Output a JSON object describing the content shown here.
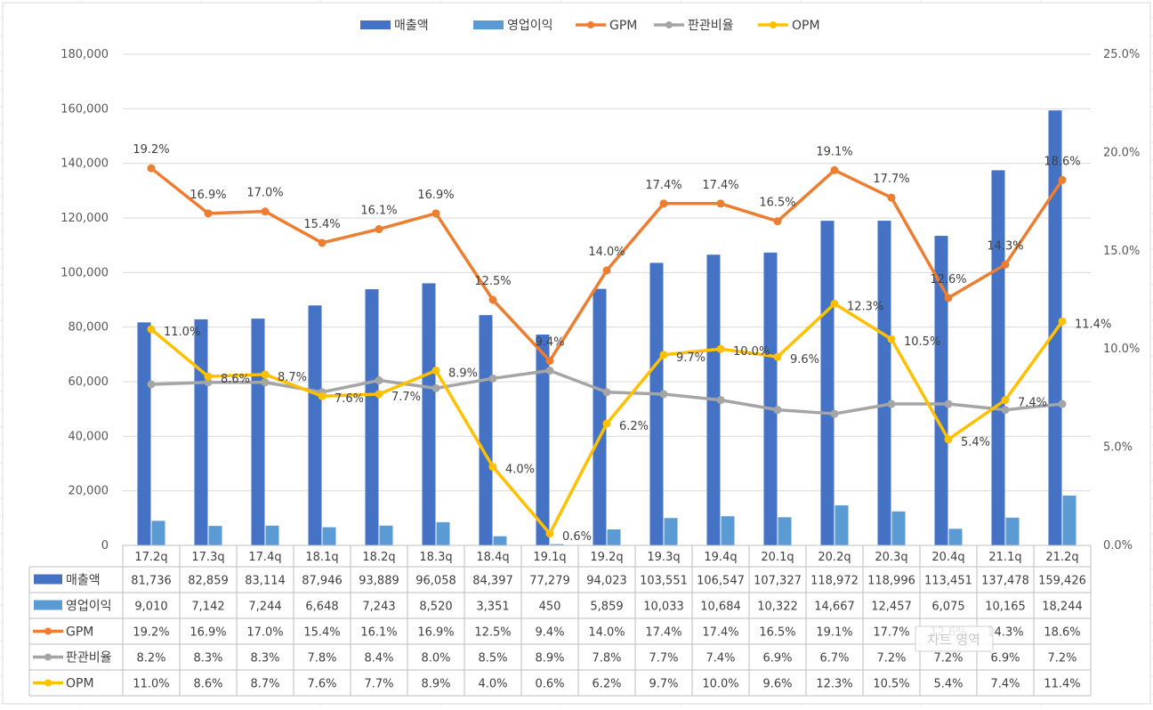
{
  "chart_data": {
    "type": "bar+line",
    "categories": [
      "17.2q",
      "17.3q",
      "17.4q",
      "18.1q",
      "18.2q",
      "18.3q",
      "18.4q",
      "19.1q",
      "19.2q",
      "19.3q",
      "19.4q",
      "20.1q",
      "20.2q",
      "20.3q",
      "20.4q",
      "21.1q",
      "21.2q"
    ],
    "bar_series": [
      {
        "name": "매출액",
        "color": "#4472C4",
        "axis": "left",
        "values": [
          81736,
          82859,
          83114,
          87946,
          93889,
          96058,
          84397,
          77279,
          94023,
          103551,
          106547,
          107327,
          118972,
          118996,
          113451,
          137478,
          159426
        ],
        "display": [
          "81,736",
          "82,859",
          "83,114",
          "87,946",
          "93,889",
          "96,058",
          "84,397",
          "77,279",
          "94,023",
          "103,551",
          "106,547",
          "107,327",
          "118,972",
          "118,996",
          "113,451",
          "137,478",
          "159,426"
        ]
      },
      {
        "name": "영업이익",
        "color": "#5B9BD5",
        "axis": "left",
        "values": [
          9010,
          7142,
          7244,
          6648,
          7243,
          8520,
          3351,
          450,
          5859,
          10033,
          10684,
          10322,
          14667,
          12457,
          6075,
          10165,
          18244
        ],
        "display": [
          "9,010",
          "7,142",
          "7,244",
          "6,648",
          "7,243",
          "8,520",
          "3,351",
          "450",
          "5,859",
          "10,033",
          "10,684",
          "10,322",
          "14,667",
          "12,457",
          "6,075",
          "10,165",
          "18,244"
        ]
      }
    ],
    "line_series": [
      {
        "name": "GPM",
        "color": "#ED7D31",
        "axis": "right",
        "show_labels": true,
        "values": [
          19.2,
          16.9,
          17.0,
          15.4,
          16.1,
          16.9,
          12.5,
          9.4,
          14.0,
          17.4,
          17.4,
          16.5,
          19.1,
          17.7,
          12.6,
          14.3,
          18.6
        ],
        "display": [
          "19.2%",
          "16.9%",
          "17.0%",
          "15.4%",
          "16.1%",
          "16.9%",
          "12.5%",
          "9.4%",
          "14.0%",
          "17.4%",
          "17.4%",
          "16.5%",
          "19.1%",
          "17.7%",
          "12.6%",
          "14.3%",
          "18.6%"
        ]
      },
      {
        "name": "판관비율",
        "color": "#A5A5A5",
        "axis": "right",
        "show_labels": false,
        "values": [
          8.2,
          8.3,
          8.3,
          7.8,
          8.4,
          8.0,
          8.5,
          8.9,
          7.8,
          7.7,
          7.4,
          6.9,
          6.7,
          7.2,
          7.2,
          6.9,
          7.2
        ],
        "display": [
          "8.2%",
          "8.3%",
          "8.3%",
          "7.8%",
          "8.4%",
          "8.0%",
          "8.5%",
          "8.9%",
          "7.8%",
          "7.7%",
          "7.4%",
          "6.9%",
          "6.7%",
          "7.2%",
          "7.2%",
          "6.9%",
          "7.2%"
        ]
      },
      {
        "name": "OPM",
        "color": "#FFC000",
        "axis": "right",
        "show_labels": true,
        "values": [
          11.0,
          8.6,
          8.7,
          7.6,
          7.7,
          8.9,
          4.0,
          0.6,
          6.2,
          9.7,
          10.0,
          9.6,
          12.3,
          10.5,
          5.4,
          7.4,
          11.4
        ],
        "display": [
          "11.0%",
          "8.6%",
          "8.7%",
          "7.6%",
          "7.7%",
          "8.9%",
          "4.0%",
          "0.6%",
          "6.2%",
          "9.7%",
          "10.0%",
          "9.6%",
          "12.3%",
          "10.5%",
          "5.4%",
          "7.4%",
          "11.4%"
        ]
      }
    ],
    "y_left": {
      "min": 0,
      "max": 180000,
      "step": 20000,
      "ticks": [
        "0",
        "20,000",
        "40,000",
        "60,000",
        "80,000",
        "100,000",
        "120,000",
        "140,000",
        "160,000",
        "180,000"
      ]
    },
    "y_right": {
      "min": 0,
      "max": 25,
      "step": 5,
      "ticks": [
        "0.0%",
        "5.0%",
        "10.0%",
        "15.0%",
        "20.0%",
        "25.0%"
      ]
    },
    "legend_position": "top",
    "data_table": true,
    "watermark": "차트 영역"
  }
}
